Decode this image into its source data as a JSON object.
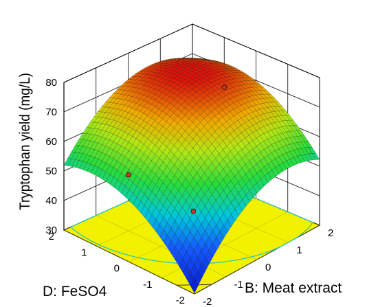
{
  "chart_data": {
    "type": "surface3d",
    "zlabel": "Tryptophan yield (mg/L)",
    "xlabel": "D: FeSO4",
    "ylabel": "B: Meat extract",
    "x_ticks": [
      "-2",
      "-1",
      "0",
      "1",
      "2"
    ],
    "y_ticks": [
      "-2",
      "-1",
      "0",
      "1",
      "2"
    ],
    "z_ticks": [
      "30",
      "40",
      "50",
      "60",
      "70",
      "80"
    ],
    "xlim": [
      -2,
      2
    ],
    "ylim": [
      -2,
      2
    ],
    "zlim": [
      30,
      80
    ],
    "grid": true,
    "surface_points": [
      {
        "D": -2,
        "B": -2,
        "z": 30
      },
      {
        "D": -2,
        "B": 0,
        "z": 53
      },
      {
        "D": -2,
        "B": 2,
        "z": 52
      },
      {
        "D": 0,
        "B": -2,
        "z": 51
      },
      {
        "D": 0,
        "B": 0,
        "z": 71
      },
      {
        "D": 0,
        "B": 2,
        "z": 70
      },
      {
        "D": 2,
        "B": -2,
        "z": 52
      },
      {
        "D": 2,
        "B": 0,
        "z": 71
      },
      {
        "D": 2,
        "B": 2,
        "z": 68
      }
    ],
    "design_points": [
      {
        "D": 0,
        "B": 1,
        "z": 73
      },
      {
        "D": -1,
        "B": -1,
        "z": 47
      },
      {
        "D": 1,
        "B": -1,
        "z": 49
      }
    ],
    "colors": {
      "floor": "#f2f200",
      "contour": "#2ec8b0",
      "grid": "#000000",
      "design_point": "#c0392b"
    }
  }
}
